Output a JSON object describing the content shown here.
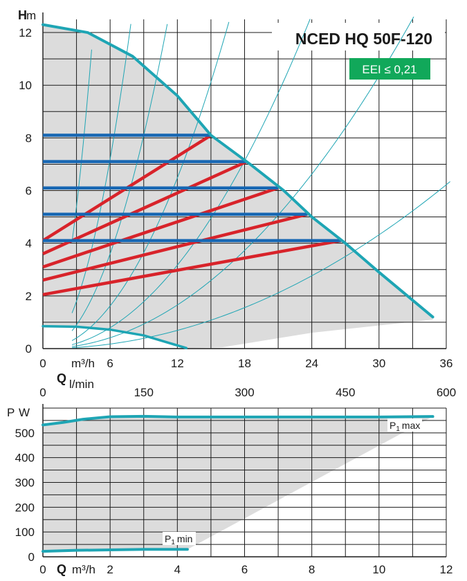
{
  "colors": {
    "teal": "#1ea5b4",
    "blue": "#1767b3",
    "red": "#d8232a",
    "grid": "#1a1a1a",
    "area": "#dcdcdc",
    "eei_bg": "#11a85a"
  },
  "header": {
    "model": "NCED HQ 50F-120",
    "eei": "EEI ≤ 0,21"
  },
  "chart_data": [
    {
      "type": "line",
      "name": "head-curve",
      "y_title": "H",
      "y_unit": "m",
      "x_title": "Q",
      "x_unit": "m³/h",
      "x_unit2": "l/min",
      "xlim": [
        0,
        36
      ],
      "ylim": [
        0,
        12.5
      ],
      "x_ticks": [
        "0",
        "6",
        "12",
        "18",
        "24",
        "30",
        "36"
      ],
      "x_tick_values": [
        0,
        6,
        12,
        18,
        24,
        30,
        36
      ],
      "y_ticks": [
        "0",
        "2",
        "4",
        "6",
        "8",
        "10",
        "12"
      ],
      "y_tick_values": [
        0,
        2,
        4,
        6,
        8,
        10,
        12
      ],
      "x2_ticks": [
        "0",
        "150",
        "300",
        "450",
        "600"
      ],
      "x2_tick_values": [
        0,
        150,
        300,
        450,
        600
      ],
      "max_curve": [
        [
          0,
          12.3
        ],
        [
          4,
          12.0
        ],
        [
          8,
          11.1
        ],
        [
          12,
          9.6
        ],
        [
          15,
          8.1
        ],
        [
          18.5,
          7.0
        ],
        [
          21.5,
          6.0
        ],
        [
          24,
          5.0
        ],
        [
          27,
          4.0
        ],
        [
          30,
          2.9
        ],
        [
          34.8,
          1.2
        ]
      ],
      "min_curve": [
        [
          0,
          0.85
        ],
        [
          3,
          0.83
        ],
        [
          6,
          0.72
        ],
        [
          9,
          0.5
        ],
        [
          12.8,
          0.02
        ]
      ],
      "constant_pressure": [
        {
          "h": 8.1,
          "q_end": 15.0
        },
        {
          "h": 7.1,
          "q_end": 18.2
        },
        {
          "h": 6.1,
          "q_end": 21.0
        },
        {
          "h": 5.1,
          "q_end": 23.6
        },
        {
          "h": 4.1,
          "q_end": 26.6
        }
      ],
      "proportional_pressure": [
        {
          "h0": 4.1,
          "q_end": 15.0,
          "h_end": 8.1
        },
        {
          "h0": 3.6,
          "q_end": 18.2,
          "h_end": 7.1
        },
        {
          "h0": 3.1,
          "q_end": 21.0,
          "h_end": 6.1
        },
        {
          "h0": 2.6,
          "q_end": 23.6,
          "h_end": 5.1
        },
        {
          "h0": 2.05,
          "q_end": 26.6,
          "h_end": 4.1
        }
      ],
      "system_curve_constants": [
        0.6,
        0.2,
        0.1,
        0.045,
        0.022,
        0.0115,
        0.0048
      ]
    },
    {
      "type": "line",
      "name": "power-curve",
      "y_title": "P",
      "y_unit": "W",
      "x_title": "Q",
      "x_unit": "m³/h",
      "xlim": [
        0,
        12
      ],
      "ylim": [
        0,
        600
      ],
      "x_ticks": [
        "0",
        "2",
        "4",
        "6",
        "8",
        "10",
        "12"
      ],
      "x_tick_values": [
        0,
        2,
        4,
        6,
        8,
        10,
        12
      ],
      "y_ticks": [
        "0",
        "100",
        "200",
        "300",
        "400",
        "500"
      ],
      "y_tick_values": [
        0,
        100,
        200,
        300,
        400,
        500
      ],
      "series": [
        {
          "name": "P1 max",
          "label_main": "P",
          "label_sub": "1",
          "label_rest": "max",
          "points": [
            [
              0,
              532
            ],
            [
              0.6,
              542
            ],
            [
              1.2,
              555
            ],
            [
              2,
              565
            ],
            [
              3,
              567
            ],
            [
              4,
              564
            ],
            [
              6,
              564
            ],
            [
              8,
              564
            ],
            [
              10,
              564
            ],
            [
              11.6,
              566
            ]
          ]
        },
        {
          "name": "P1 min",
          "label_main": "P",
          "label_sub": "1",
          "label_rest": "min",
          "points": [
            [
              0,
              22
            ],
            [
              1,
              26
            ],
            [
              2,
              28
            ],
            [
              3,
              30
            ],
            [
              4.3,
              30
            ]
          ]
        }
      ]
    }
  ]
}
